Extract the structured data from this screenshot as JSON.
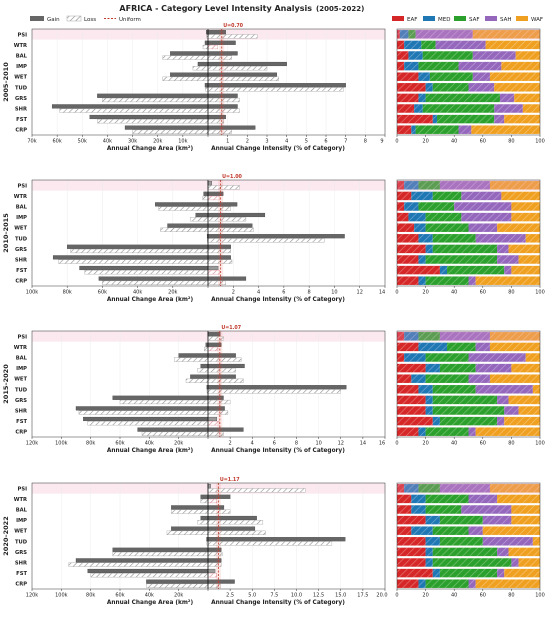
{
  "title": "AFRICA - Category Level Intensity Analysis",
  "title_years": "(2005-2022)",
  "legend": {
    "gain": "Gain",
    "loss": "Loss",
    "uniform": "Uniform",
    "stack": [
      "EAF",
      "MED",
      "SAF",
      "SAH",
      "WAF"
    ]
  },
  "colors": {
    "gain_fill": "#666666",
    "loss_hatch": "#9a9a9a",
    "uniform": "#c0392b",
    "EAF": "#d62728",
    "MED": "#1f77b4",
    "SAF": "#2ca02c",
    "SAH": "#9467bd",
    "WAF": "#f0a020"
  },
  "chart_data": {
    "type": "bar",
    "categories": [
      "PSI",
      "WTR",
      "BAL",
      "IMP",
      "WET",
      "TUD",
      "GRS",
      "SHR",
      "FST",
      "CRP"
    ],
    "xlabel_area": "Annual Change Area (km²)",
    "xlabel_intensity": "Annual Change Intensity (% of Category)",
    "stack_ticks": [
      "0",
      "20",
      "40",
      "60",
      "80",
      "100"
    ],
    "panels": [
      {
        "period": "2005–2010",
        "uniform": 0.7,
        "uniform_label": "U=0.70",
        "area_ticks": [
          "70k",
          "60k",
          "50k",
          "40k",
          "30k",
          "20k",
          "10k",
          "0"
        ],
        "area_max": 70000,
        "int_ticks": [
          "1",
          "2",
          "3",
          "4",
          "5",
          "6",
          "7",
          "8",
          "9"
        ],
        "int_max": 9,
        "gain_area": [
          700,
          1200,
          15000,
          4000,
          15000,
          1200,
          44000,
          62000,
          47000,
          33000
        ],
        "loss_area": [
          500,
          2000,
          18000,
          6000,
          18000,
          1000,
          42000,
          59000,
          44000,
          30000
        ],
        "gain_int": [
          0.9,
          1.4,
          1.5,
          4.0,
          3.5,
          7.0,
          1.5,
          1.5,
          0.9,
          2.4
        ],
        "loss_int": [
          2.5,
          0.5,
          1.2,
          3.0,
          3.6,
          6.9,
          1.6,
          1.6,
          0.8,
          1.2
        ],
        "stack": [
          [
            2,
            6,
            5,
            40,
            47
          ],
          [
            5,
            12,
            10,
            35,
            38
          ],
          [
            8,
            10,
            35,
            30,
            17
          ],
          [
            5,
            10,
            28,
            30,
            27
          ],
          [
            15,
            8,
            30,
            12,
            35
          ],
          [
            20,
            5,
            25,
            18,
            32
          ],
          [
            15,
            5,
            52,
            10,
            18
          ],
          [
            12,
            6,
            50,
            20,
            12
          ],
          [
            25,
            3,
            40,
            7,
            25
          ],
          [
            10,
            3,
            30,
            9,
            48
          ]
        ]
      },
      {
        "period": "2010–2015",
        "uniform": 1.0,
        "uniform_label": "U=1.00",
        "area_ticks": [
          "100k",
          "80k",
          "60k",
          "40k",
          "20k",
          "0"
        ],
        "area_max": 100000,
        "int_ticks": [
          "2",
          "4",
          "6",
          "8",
          "10",
          "12",
          "14"
        ],
        "int_max": 14,
        "gain_area": [
          200,
          2500,
          30000,
          7000,
          23000,
          500,
          80000,
          88000,
          73000,
          62000
        ],
        "loss_area": [
          150,
          3000,
          28000,
          10000,
          27000,
          400,
          78000,
          85000,
          70000,
          60000
        ],
        "gain_int": [
          0.3,
          1.2,
          2.3,
          4.5,
          3.5,
          10.8,
          1.8,
          1.8,
          0.8,
          3.0
        ],
        "loss_int": [
          2.5,
          0.9,
          1.8,
          3.0,
          3.6,
          9.2,
          1.8,
          1.9,
          0.9,
          1.4
        ],
        "stack": [
          [
            5,
            10,
            15,
            35,
            35
          ],
          [
            10,
            15,
            20,
            28,
            27
          ],
          [
            5,
            10,
            25,
            40,
            20
          ],
          [
            8,
            12,
            25,
            35,
            20
          ],
          [
            12,
            8,
            30,
            20,
            30
          ],
          [
            15,
            10,
            30,
            35,
            10
          ],
          [
            20,
            5,
            45,
            8,
            22
          ],
          [
            15,
            5,
            50,
            15,
            15
          ],
          [
            30,
            5,
            40,
            5,
            20
          ],
          [
            15,
            5,
            30,
            5,
            45
          ]
        ]
      },
      {
        "period": "2015–2020",
        "uniform": 1.07,
        "uniform_label": "U=1.07",
        "area_ticks": [
          "120k",
          "100k",
          "80k",
          "60k",
          "40k",
          "20k",
          "0"
        ],
        "area_max": 120000,
        "int_ticks": [
          "2",
          "4",
          "6",
          "8",
          "10",
          "12",
          "14",
          "16"
        ],
        "int_max": 16,
        "gain_area": [
          200,
          1500,
          20000,
          5000,
          12000,
          800,
          65000,
          90000,
          85000,
          48000
        ],
        "loss_area": [
          150,
          2500,
          23000,
          7000,
          15000,
          700,
          60000,
          88000,
          82000,
          45000
        ],
        "gain_int": [
          1.1,
          1.2,
          2.5,
          3.3,
          2.5,
          12.5,
          1.4,
          1.5,
          0.8,
          3.2
        ],
        "loss_int": [
          1.4,
          0.9,
          3.0,
          2.5,
          3.2,
          12.0,
          2.0,
          1.8,
          1.0,
          1.4
        ],
        "stack": [
          [
            5,
            10,
            15,
            35,
            35
          ],
          [
            15,
            20,
            20,
            10,
            35
          ],
          [
            5,
            15,
            30,
            40,
            10
          ],
          [
            20,
            10,
            25,
            25,
            20
          ],
          [
            10,
            10,
            30,
            15,
            35
          ],
          [
            15,
            10,
            30,
            40,
            5
          ],
          [
            20,
            5,
            45,
            8,
            22
          ],
          [
            20,
            5,
            50,
            10,
            15
          ],
          [
            25,
            5,
            40,
            5,
            25
          ],
          [
            15,
            5,
            30,
            5,
            45
          ]
        ]
      },
      {
        "period": "2020–2022",
        "uniform": 1.17,
        "uniform_label": "U=1.17",
        "area_ticks": [
          "120k",
          "100k",
          "80k",
          "60k",
          "40k",
          "20k",
          "0"
        ],
        "area_max": 120000,
        "int_ticks": [
          "2.5",
          "5.0",
          "7.5",
          "10.0",
          "12.5",
          "15.0",
          "17.5",
          "20.0"
        ],
        "int_max": 20,
        "gain_area": [
          200,
          5000,
          25000,
          5000,
          25000,
          1000,
          65000,
          90000,
          82000,
          42000
        ],
        "loss_area": [
          150,
          5000,
          25000,
          7000,
          28000,
          800,
          65000,
          95000,
          80000,
          42000
        ],
        "gain_int": [
          0.3,
          2.5,
          1.8,
          5.5,
          5.3,
          15.5,
          1.5,
          1.5,
          0.8,
          3.0
        ],
        "loss_int": [
          11.0,
          1.0,
          2.5,
          6.2,
          6.5,
          14.0,
          1.6,
          1.5,
          1.0,
          1.4
        ],
        "stack": [
          [
            5,
            10,
            15,
            35,
            35
          ],
          [
            10,
            10,
            30,
            20,
            30
          ],
          [
            10,
            10,
            25,
            35,
            20
          ],
          [
            20,
            10,
            30,
            20,
            20
          ],
          [
            10,
            15,
            25,
            10,
            40
          ],
          [
            20,
            10,
            30,
            35,
            5
          ],
          [
            20,
            5,
            45,
            8,
            22
          ],
          [
            20,
            5,
            55,
            5,
            15
          ],
          [
            25,
            5,
            40,
            5,
            25
          ],
          [
            15,
            5,
            30,
            5,
            45
          ]
        ]
      }
    ]
  }
}
